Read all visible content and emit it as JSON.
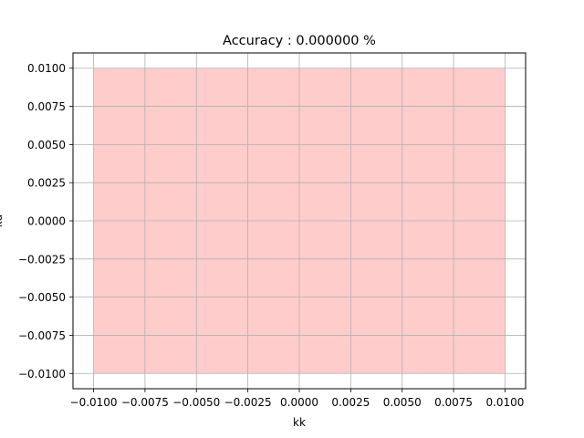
{
  "chart_data": {
    "type": "area",
    "title": "Accuracy : 0.000000 %",
    "xlabel": "kk",
    "ylabel": "kd",
    "xlim": [
      -0.011,
      0.011
    ],
    "ylim": [
      -0.011,
      0.011
    ],
    "x_ticks": [
      -0.01,
      -0.0075,
      -0.005,
      -0.0025,
      0.0,
      0.0025,
      0.005,
      0.0075,
      0.01
    ],
    "x_tick_labels": [
      "−0.0100",
      "−0.0075",
      "−0.0050",
      "−0.0025",
      "0.0000",
      "0.0025",
      "0.0050",
      "0.0075",
      "0.0100"
    ],
    "y_ticks": [
      0.01,
      0.0075,
      0.005,
      0.0025,
      0.0,
      -0.0025,
      -0.005,
      -0.0075,
      -0.01
    ],
    "y_tick_labels": [
      "0.0100",
      "0.0075",
      "0.0050",
      "0.0025",
      "0.0000",
      "−0.0025",
      "−0.0050",
      "−0.0075",
      "−0.0100"
    ],
    "grid": true,
    "regions": [
      {
        "x": [
          -0.01,
          0.01
        ],
        "y": [
          -0.01,
          0.01
        ],
        "color": "#ffcccc"
      }
    ],
    "colors": {
      "grid": "#b0b0b0",
      "axes": "#000000"
    }
  }
}
